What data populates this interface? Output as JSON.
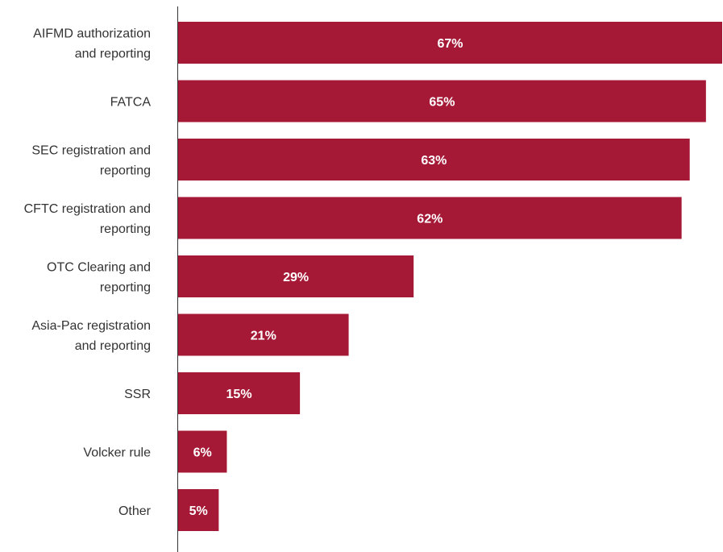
{
  "chart_data": {
    "type": "bar",
    "orientation": "horizontal",
    "categories": [
      [
        "AIFMD authorization",
        "and reporting"
      ],
      [
        "FATCA"
      ],
      [
        "SEC registration and",
        "reporting"
      ],
      [
        "CFTC registration and",
        "reporting"
      ],
      [
        "OTC Clearing and",
        "reporting"
      ],
      [
        "Asia-Pac registration",
        "and reporting"
      ],
      [
        "SSR"
      ],
      [
        "Volcker rule"
      ],
      [
        "Other"
      ]
    ],
    "values": [
      67,
      65,
      63,
      62,
      29,
      21,
      15,
      6,
      5
    ],
    "value_labels": [
      "67%",
      "65%",
      "63%",
      "62%",
      "29%",
      "21%",
      "15%",
      "6%",
      "5%"
    ],
    "unit": "%",
    "xlim": [
      0,
      67
    ],
    "bar_color": "#a51936",
    "label_color": "#ffffff",
    "axis_color": "#333333",
    "grid": false,
    "legend": "none"
  }
}
